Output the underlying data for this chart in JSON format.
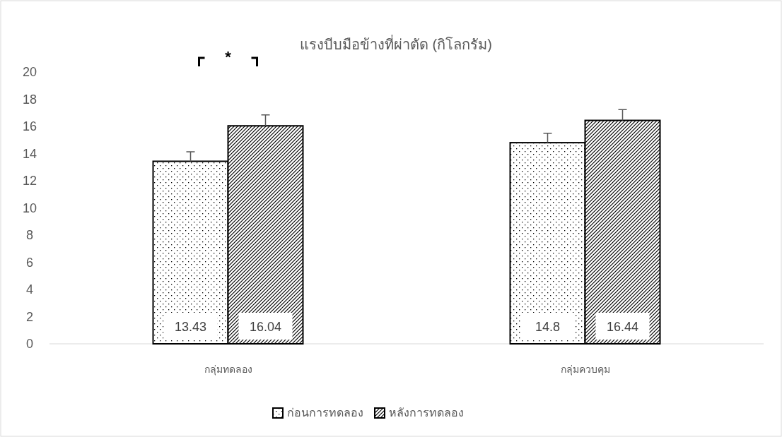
{
  "chart_data": {
    "type": "bar",
    "title": "แรงบีบมือข้างที่ผ่าตัด (กิโลกรัม)",
    "categories": [
      "กลุ่มทดลอง",
      "กลุ่มควบคุม"
    ],
    "series": [
      {
        "name": "ก่อนการทดลอง",
        "color": "#000000",
        "values": [
          13.43,
          14.8
        ],
        "errors": [
          [
            13.43,
            14.13
          ],
          [
            14.8,
            15.5
          ]
        ]
      },
      {
        "name": "หลังการทดลอง",
        "color": "#000000",
        "values": [
          16.04,
          16.44
        ],
        "errors": [
          [
            16.04,
            16.84
          ],
          [
            16.44,
            17.24
          ]
        ]
      }
    ],
    "ylim": [
      0,
      20
    ],
    "yticks": [
      0,
      2,
      4,
      6,
      8,
      10,
      12,
      14,
      16,
      18,
      20
    ],
    "data_labels": true,
    "grid": false,
    "legend": "bottom",
    "annotations": [
      "*"
    ]
  }
}
